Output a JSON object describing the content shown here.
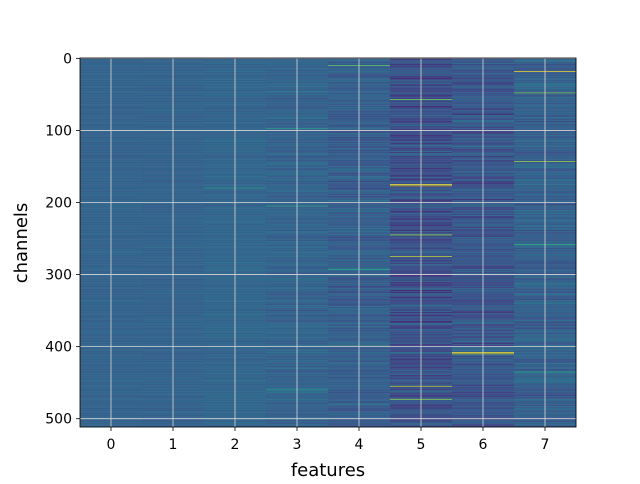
{
  "chart_data": {
    "type": "heatmap",
    "title": "",
    "xlabel": "features",
    "ylabel": "channels",
    "x_ticks": [
      "0",
      "1",
      "2",
      "3",
      "4",
      "5",
      "6",
      "7"
    ],
    "y_ticks": [
      "0",
      "100",
      "200",
      "300",
      "400",
      "500"
    ],
    "y_tick_values": [
      0,
      100,
      200,
      300,
      400,
      500
    ],
    "n_columns": 8,
    "n_rows": 512,
    "xlim": [
      -0.5,
      7.5
    ],
    "ylim": [
      511.5,
      -0.5
    ],
    "y_inverted": true,
    "grid": true,
    "colormap": "viridis",
    "value_range": [
      0,
      1
    ],
    "column_stats": [
      {
        "feature": 0,
        "mean": 0.32,
        "spread": 0.03
      },
      {
        "feature": 1,
        "mean": 0.32,
        "spread": 0.035
      },
      {
        "feature": 2,
        "mean": 0.33,
        "spread": 0.05
      },
      {
        "feature": 3,
        "mean": 0.32,
        "spread": 0.09
      },
      {
        "feature": 4,
        "mean": 0.3,
        "spread": 0.12
      },
      {
        "feature": 5,
        "mean": 0.25,
        "spread": 0.16
      },
      {
        "feature": 6,
        "mean": 0.27,
        "spread": 0.14
      },
      {
        "feature": 7,
        "mean": 0.31,
        "spread": 0.13
      }
    ],
    "highlights": [
      {
        "feature": 4,
        "channel": 10,
        "value": 0.75
      },
      {
        "feature": 3,
        "channel": 97,
        "value": 0.55
      },
      {
        "feature": 3,
        "channel": 205,
        "value": 0.62
      },
      {
        "feature": 2,
        "channel": 180,
        "value": 0.55
      },
      {
        "feature": 5,
        "channel": 57,
        "value": 0.8
      },
      {
        "feature": 5,
        "channel": 175,
        "value": 1.0
      },
      {
        "feature": 5,
        "channel": 177,
        "value": 0.95
      },
      {
        "feature": 5,
        "channel": 245,
        "value": 0.85
      },
      {
        "feature": 5,
        "channel": 275,
        "value": 0.9
      },
      {
        "feature": 5,
        "channel": 455,
        "value": 0.9
      },
      {
        "feature": 5,
        "channel": 473,
        "value": 0.85
      },
      {
        "feature": 6,
        "channel": 408,
        "value": 1.0
      },
      {
        "feature": 6,
        "channel": 410,
        "value": 0.95
      },
      {
        "feature": 6,
        "channel": 300,
        "value": 0.6
      },
      {
        "feature": 7,
        "channel": 18,
        "value": 1.0
      },
      {
        "feature": 7,
        "channel": 48,
        "value": 0.8
      },
      {
        "feature": 7,
        "channel": 143,
        "value": 0.85
      },
      {
        "feature": 7,
        "channel": 258,
        "value": 0.65
      },
      {
        "feature": 7,
        "channel": 435,
        "value": 0.6
      },
      {
        "feature": 4,
        "channel": 293,
        "value": 0.6
      },
      {
        "feature": 4,
        "channel": 398,
        "value": 0.55
      },
      {
        "feature": 3,
        "channel": 460,
        "value": 0.55
      }
    ]
  }
}
